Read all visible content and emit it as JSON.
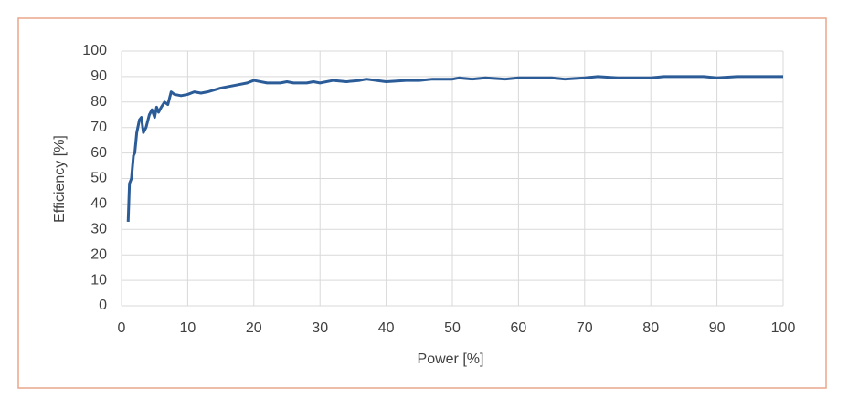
{
  "chart_data": {
    "type": "line",
    "x_label": "Power [%]",
    "y_label": "Efficiency [%]",
    "x": [
      1,
      1.2,
      1.5,
      1.8,
      2.0,
      2.3,
      2.7,
      3.0,
      3.3,
      3.7,
      4.2,
      4.6,
      5.0,
      5.3,
      5.6,
      6.0,
      6.5,
      7.0,
      7.5,
      8.0,
      9,
      10,
      11,
      12,
      13,
      15,
      17,
      19,
      20,
      22,
      24,
      25,
      26,
      28,
      29,
      30,
      32,
      34,
      36,
      37,
      40,
      43,
      45,
      47,
      50,
      51,
      53,
      55,
      58,
      60,
      65,
      67,
      70,
      72,
      75,
      80,
      82,
      88,
      90,
      93,
      100
    ],
    "series": [
      {
        "name": "Efficiency",
        "color": "#2b5c98",
        "values": [
          33,
          48,
          50,
          59,
          60,
          68,
          73,
          74,
          68,
          70,
          75,
          77,
          74,
          78,
          76,
          78,
          80,
          79,
          84,
          83,
          82.5,
          83,
          84,
          83.5,
          84,
          85.5,
          86.5,
          87.5,
          88.5,
          87.5,
          87.5,
          88,
          87.5,
          87.5,
          88,
          87.5,
          88.5,
          88,
          88.5,
          89,
          88,
          88.5,
          88.5,
          89,
          89,
          89.5,
          89,
          89.5,
          89,
          89.5,
          89.5,
          89,
          89.5,
          90,
          89.5,
          89.5,
          90,
          90,
          89.5,
          90,
          90
        ]
      }
    ],
    "xlim": [
      0,
      100
    ],
    "xticks": [
      0,
      10,
      20,
      30,
      40,
      50,
      60,
      70,
      80,
      90,
      100
    ],
    "ylim": [
      0,
      100
    ],
    "yticks": [
      0,
      10,
      20,
      30,
      40,
      50,
      60,
      70,
      80,
      90,
      100
    ],
    "grid": true
  }
}
